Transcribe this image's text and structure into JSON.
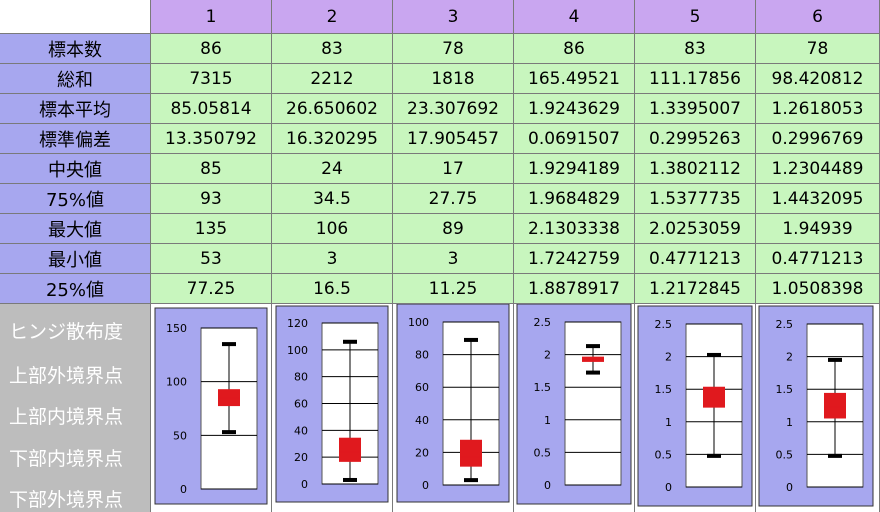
{
  "columns": [
    "1",
    "2",
    "3",
    "4",
    "5",
    "6"
  ],
  "rows": [
    {
      "label": "標本数",
      "values": [
        "86",
        "83",
        "78",
        "86",
        "83",
        "78"
      ]
    },
    {
      "label": "総和",
      "values": [
        "7315",
        "2212",
        "1818",
        "165.49521",
        "111.17856",
        "98.420812"
      ]
    },
    {
      "label": "標本平均",
      "values": [
        "85.05814",
        "26.650602",
        "23.307692",
        "1.9243629",
        "1.3395007",
        "1.2618053"
      ]
    },
    {
      "label": "標準偏差",
      "values": [
        "13.350792",
        "16.320295",
        "17.905457",
        "0.0691507",
        "0.2995263",
        "0.2996769"
      ]
    },
    {
      "label": "中央値",
      "values": [
        "85",
        "24",
        "17",
        "1.9294189",
        "1.3802112",
        "1.2304489"
      ]
    },
    {
      "label": "75%値",
      "values": [
        "93",
        "34.5",
        "27.75",
        "1.9684829",
        "1.5377735",
        "1.4432095"
      ]
    },
    {
      "label": "最大値",
      "values": [
        "135",
        "106",
        "89",
        "2.1303338",
        "2.0253059",
        "1.94939"
      ]
    },
    {
      "label": "最小値",
      "values": [
        "53",
        "3",
        "3",
        "1.7242759",
        "0.4771213",
        "0.4771213"
      ]
    },
    {
      "label": "25%値",
      "values": [
        "77.25",
        "16.5",
        "11.25",
        "1.8878917",
        "1.2172845",
        "1.0508398"
      ]
    }
  ],
  "lower_labels": [
    "ヒンジ散布度",
    "上部外境界点",
    "上部内境界点",
    "下部内境界点",
    "下部外境界点"
  ],
  "colors": {
    "header_bg": "#c9a6f0",
    "row_label_bg": "#a7a7ef",
    "value_bg": "#c8f6be",
    "chart_panel_bg": "#a7a7ef",
    "lower_label_bg": "#bdbdbd",
    "box_fill": "#e0191e"
  },
  "chart_data": [
    {
      "type": "box",
      "ylim": [
        0,
        150
      ],
      "yticks": [
        "0",
        "50",
        "100",
        "150"
      ],
      "tick_values": [
        0,
        50,
        100,
        150
      ],
      "min": 53,
      "q1": 77.25,
      "median": 85,
      "q3": 93,
      "max": 135
    },
    {
      "type": "box",
      "ylim": [
        0,
        120
      ],
      "yticks": [
        "0",
        "20",
        "40",
        "60",
        "80",
        "100",
        "120"
      ],
      "tick_values": [
        0,
        20,
        40,
        60,
        80,
        100,
        120
      ],
      "min": 3,
      "q1": 16.5,
      "median": 24,
      "q3": 34.5,
      "max": 106
    },
    {
      "type": "box",
      "ylim": [
        0,
        100
      ],
      "yticks": [
        "0",
        "20",
        "40",
        "60",
        "80",
        "100"
      ],
      "tick_values": [
        0,
        20,
        40,
        60,
        80,
        100
      ],
      "min": 3,
      "q1": 11.25,
      "median": 17,
      "q3": 27.75,
      "max": 89
    },
    {
      "type": "box",
      "ylim": [
        0,
        2.5
      ],
      "yticks": [
        "0",
        "0.5",
        "1",
        "1.5",
        "2",
        "2.5"
      ],
      "tick_values": [
        0,
        0.5,
        1,
        1.5,
        2,
        2.5
      ],
      "min": 1.7242759,
      "q1": 1.8878917,
      "median": 1.9294189,
      "q3": 1.9684829,
      "max": 2.1303338
    },
    {
      "type": "box",
      "ylim": [
        0,
        2.5
      ],
      "yticks": [
        "0",
        "0.5",
        "1",
        "1.5",
        "2",
        "2.5"
      ],
      "tick_values": [
        0,
        0.5,
        1,
        1.5,
        2,
        2.5
      ],
      "min": 0.4771213,
      "q1": 1.2172845,
      "median": 1.3802112,
      "q3": 1.5377735,
      "max": 2.0253059
    },
    {
      "type": "box",
      "ylim": [
        0,
        2.5
      ],
      "yticks": [
        "0",
        "0.5",
        "1",
        "1.5",
        "2",
        "2.5"
      ],
      "tick_values": [
        0,
        0.5,
        1,
        1.5,
        2,
        2.5
      ],
      "min": 0.4771213,
      "q1": 1.0508398,
      "median": 1.2304489,
      "q3": 1.4432095,
      "max": 1.94939
    }
  ]
}
